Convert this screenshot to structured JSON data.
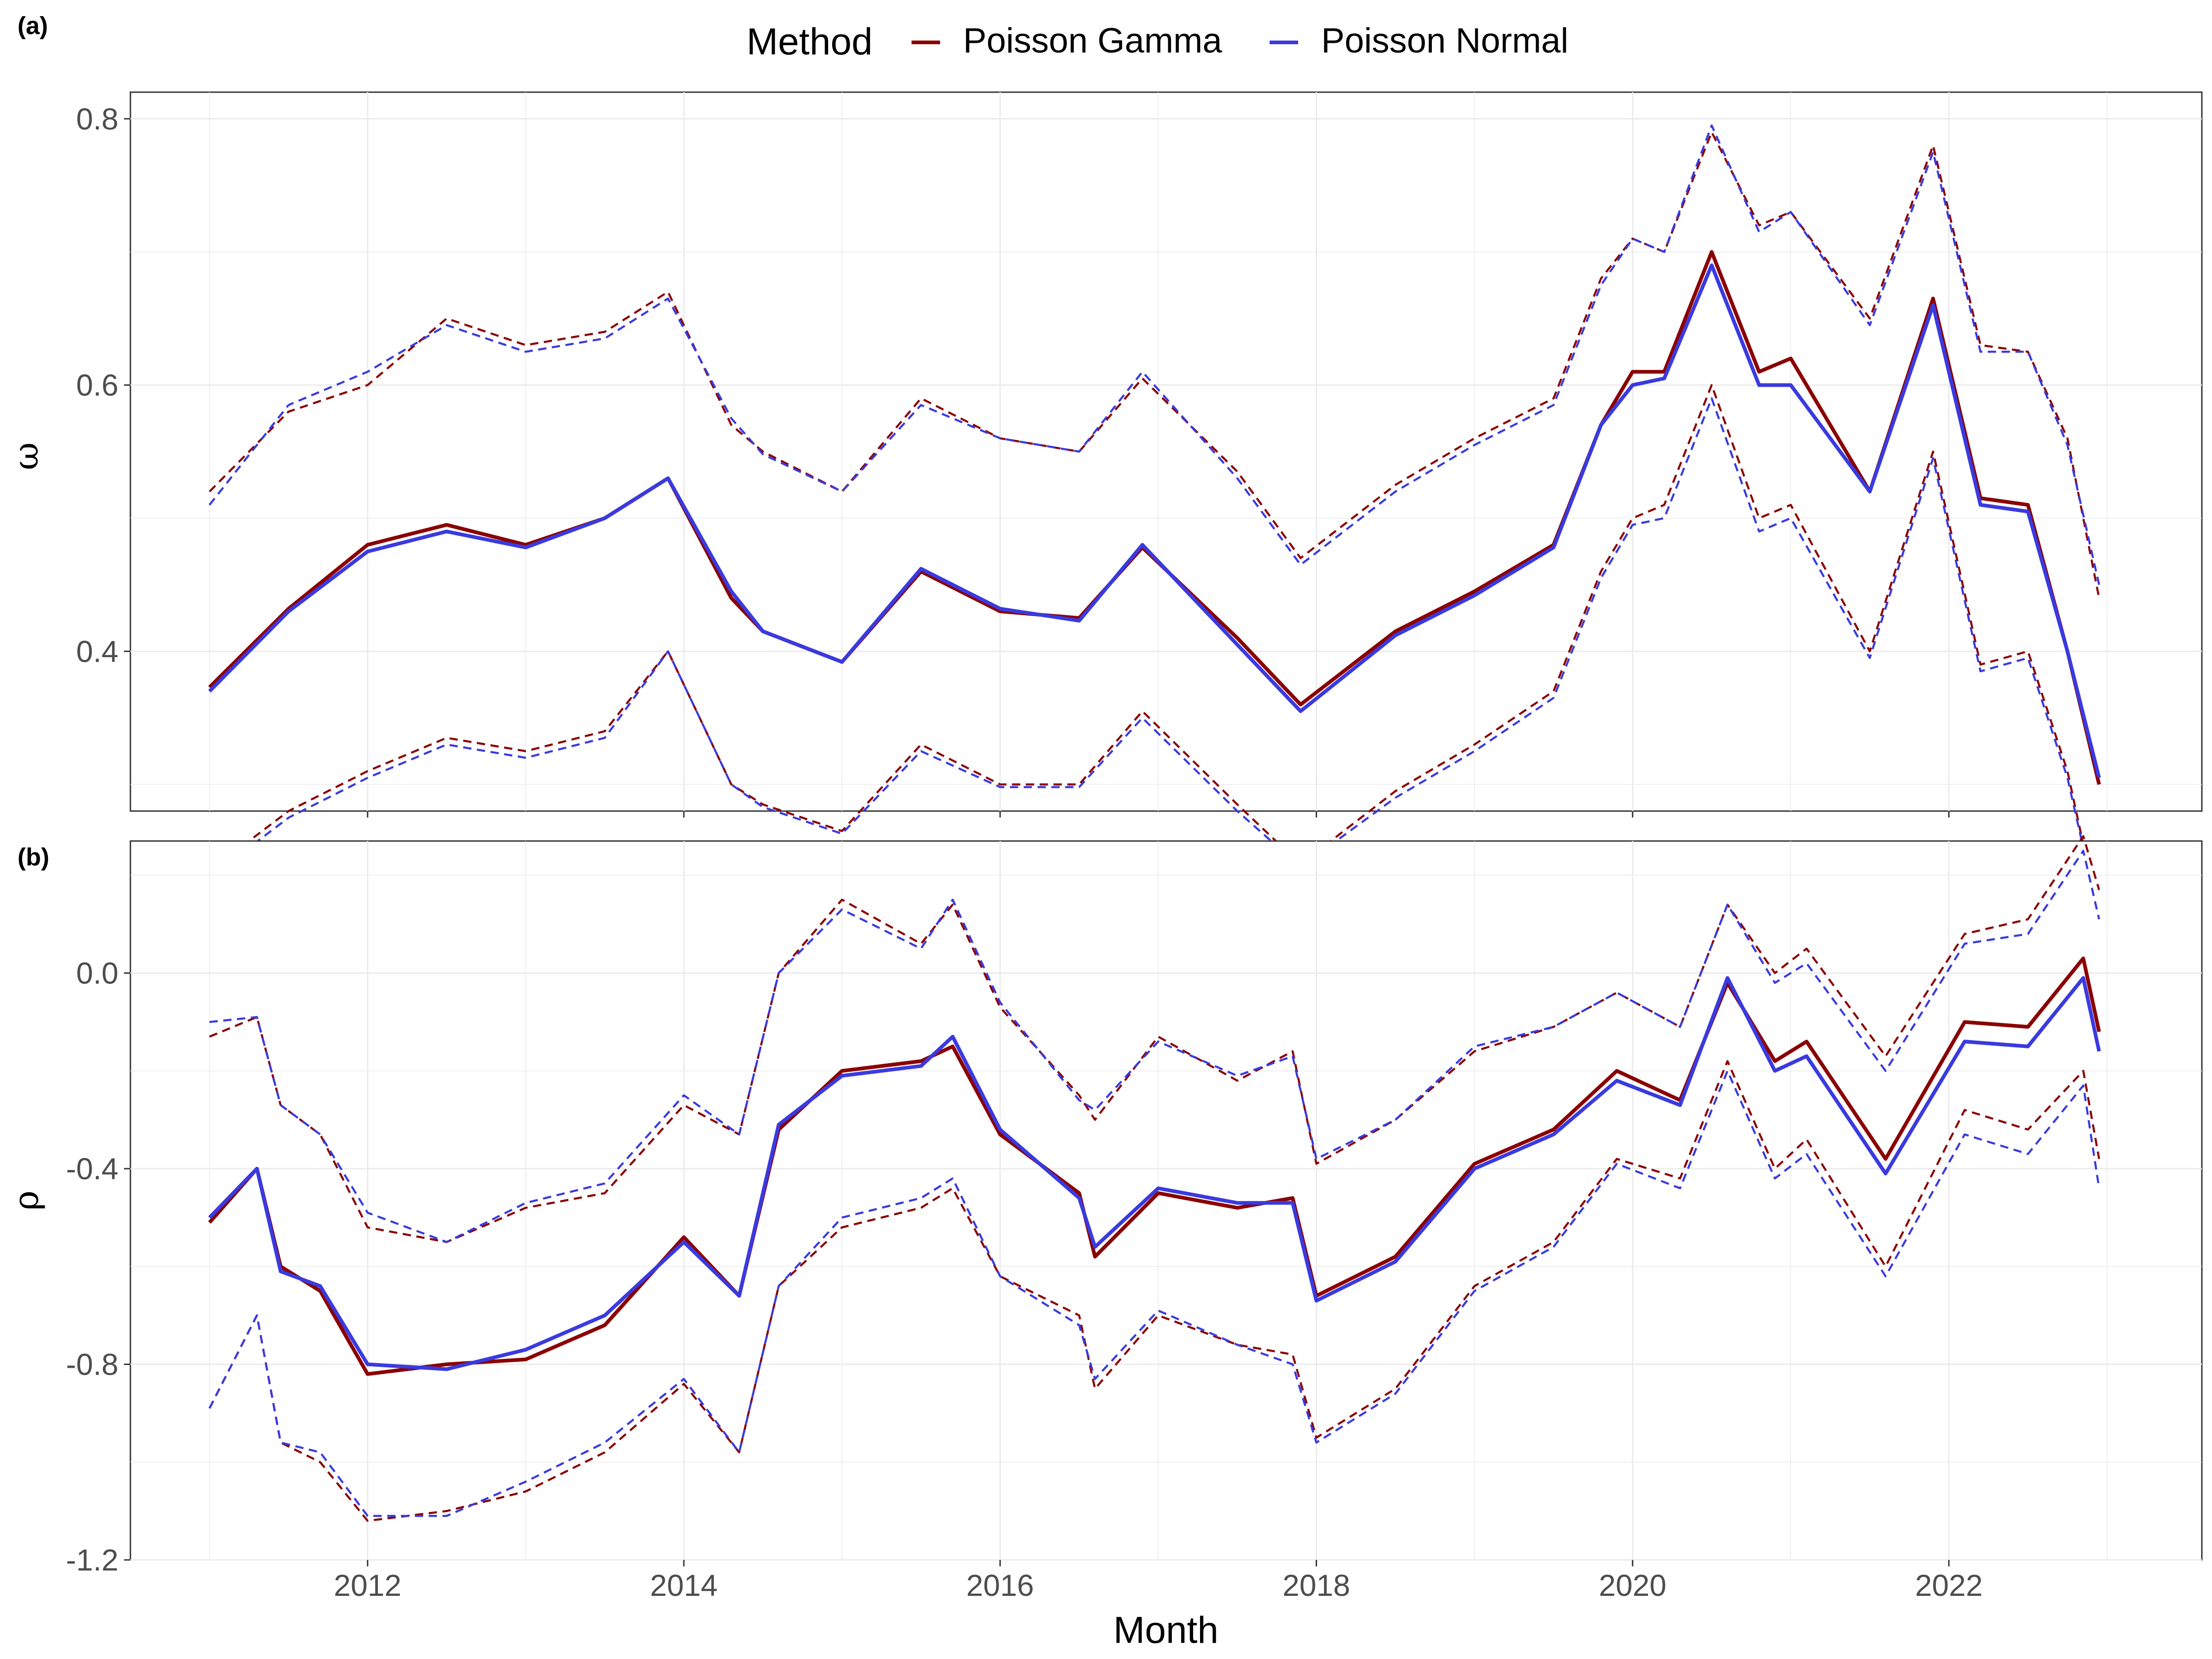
{
  "legend": {
    "title": "Method",
    "placement": "top",
    "entries": [
      {
        "name": "Poisson Gamma",
        "color": "#8b0000"
      },
      {
        "name": "Poisson Normal",
        "color": "#3a3ae0"
      }
    ]
  },
  "chart_data": [
    {
      "panel": "(a)",
      "type": "line",
      "xlabel": "",
      "ylabel": "ω",
      "x_range": [
        2010.5,
        2023.6
      ],
      "ylim": [
        0.28,
        0.82
      ],
      "y_ticks": [
        "0.4",
        "0.6",
        "0.8"
      ],
      "y_tick_values": [
        0.4,
        0.6,
        0.8
      ],
      "grid": true,
      "x": [
        2011.0,
        2011.5,
        2012.0,
        2012.5,
        2013.0,
        2013.5,
        2013.9,
        2014.3,
        2014.5,
        2015.0,
        2015.5,
        2016.0,
        2016.5,
        2016.9,
        2017.5,
        2017.9,
        2018.5,
        2019.0,
        2019.5,
        2019.8,
        2020.0,
        2020.2,
        2020.5,
        2020.8,
        2021.0,
        2021.5,
        2021.9,
        2022.2,
        2022.5,
        2022.75,
        2022.95
      ],
      "series": [
        {
          "name": "Poisson Gamma",
          "style": "solid",
          "color": "#8b0000",
          "values": [
            0.373,
            0.432,
            0.48,
            0.495,
            0.48,
            0.5,
            0.53,
            0.44,
            0.415,
            0.392,
            0.46,
            0.43,
            0.425,
            0.478,
            0.41,
            0.36,
            0.415,
            0.445,
            0.48,
            0.57,
            0.61,
            0.61,
            0.7,
            0.61,
            0.62,
            0.52,
            0.665,
            0.515,
            0.51,
            0.4,
            0.3
          ]
        },
        {
          "name": "Poisson Normal",
          "style": "solid",
          "color": "#3a3ae0",
          "values": [
            0.37,
            0.43,
            0.475,
            0.49,
            0.478,
            0.5,
            0.53,
            0.445,
            0.415,
            0.392,
            0.462,
            0.432,
            0.423,
            0.48,
            0.405,
            0.355,
            0.412,
            0.442,
            0.478,
            0.57,
            0.6,
            0.605,
            0.69,
            0.6,
            0.6,
            0.52,
            0.66,
            0.51,
            0.505,
            0.4,
            0.305
          ]
        },
        {
          "name": "Poisson Gamma",
          "style": "dashed",
          "color": "#8b0000",
          "values": [
            0.52,
            0.58,
            0.6,
            0.65,
            0.63,
            0.64,
            0.67,
            0.57,
            0.55,
            0.52,
            0.59,
            0.56,
            0.55,
            0.605,
            0.535,
            0.47,
            0.525,
            0.56,
            0.59,
            0.68,
            0.71,
            0.7,
            0.79,
            0.72,
            0.73,
            0.65,
            0.78,
            0.63,
            0.625,
            0.56,
            0.44
          ]
        },
        {
          "name": "Poisson Normal",
          "style": "dashed",
          "color": "#3a3ae0",
          "values": [
            0.51,
            0.585,
            0.61,
            0.645,
            0.625,
            0.635,
            0.665,
            0.575,
            0.548,
            0.52,
            0.585,
            0.56,
            0.55,
            0.61,
            0.53,
            0.465,
            0.52,
            0.555,
            0.585,
            0.675,
            0.71,
            0.7,
            0.795,
            0.715,
            0.73,
            0.645,
            0.775,
            0.625,
            0.625,
            0.555,
            0.45
          ]
        },
        {
          "name": "Poisson Gamma",
          "style": "dashed",
          "color": "#8b0000",
          "values": [
            0.235,
            0.28,
            0.31,
            0.335,
            0.325,
            0.34,
            0.4,
            0.3,
            0.285,
            0.265,
            0.33,
            0.3,
            0.3,
            0.355,
            0.285,
            0.24,
            0.295,
            0.33,
            0.37,
            0.46,
            0.5,
            0.51,
            0.6,
            0.5,
            0.51,
            0.4,
            0.55,
            0.39,
            0.4,
            0.31,
            0.2
          ]
        },
        {
          "name": "Poisson Normal",
          "style": "dashed",
          "color": "#3a3ae0",
          "values": [
            0.23,
            0.275,
            0.305,
            0.33,
            0.32,
            0.335,
            0.4,
            0.3,
            0.283,
            0.263,
            0.325,
            0.298,
            0.298,
            0.35,
            0.28,
            0.238,
            0.29,
            0.325,
            0.365,
            0.455,
            0.495,
            0.5,
            0.59,
            0.49,
            0.5,
            0.395,
            0.545,
            0.385,
            0.395,
            0.305,
            0.2
          ]
        }
      ]
    },
    {
      "panel": "(b)",
      "type": "line",
      "xlabel": "Month",
      "ylabel": "ρ",
      "x_range": [
        2010.5,
        2023.6
      ],
      "ylim": [
        -1.2,
        0.27
      ],
      "y_ticks": [
        "-1.2",
        "-0.8",
        "-0.4",
        "0.0"
      ],
      "y_tick_values": [
        -1.2,
        -0.8,
        -0.4,
        0.0
      ],
      "x_ticks": [
        "2012",
        "2014",
        "2016",
        "2018",
        "2020",
        "2022"
      ],
      "x_tick_values": [
        2012,
        2014,
        2016,
        2018,
        2020,
        2022
      ],
      "grid": true,
      "x": [
        2011.0,
        2011.3,
        2011.45,
        2011.7,
        2012.0,
        2012.5,
        2013.0,
        2013.5,
        2014.0,
        2014.35,
        2014.6,
        2015.0,
        2015.5,
        2015.7,
        2016.0,
        2016.5,
        2016.6,
        2017.0,
        2017.5,
        2017.85,
        2018.0,
        2018.5,
        2019.0,
        2019.5,
        2019.9,
        2020.3,
        2020.6,
        2020.9,
        2021.1,
        2021.6,
        2022.1,
        2022.5,
        2022.85,
        2022.95
      ],
      "series": [
        {
          "name": "Poisson Gamma",
          "style": "solid",
          "color": "#8b0000",
          "values": [
            -0.51,
            -0.4,
            -0.6,
            -0.65,
            -0.82,
            -0.8,
            -0.79,
            -0.72,
            -0.54,
            -0.66,
            -0.32,
            -0.2,
            -0.18,
            -0.15,
            -0.33,
            -0.45,
            -0.58,
            -0.45,
            -0.48,
            -0.46,
            -0.66,
            -0.58,
            -0.39,
            -0.32,
            -0.2,
            -0.26,
            -0.02,
            -0.18,
            -0.14,
            -0.38,
            -0.1,
            -0.11,
            0.03,
            -0.12
          ]
        },
        {
          "name": "Poisson Normal",
          "style": "solid",
          "color": "#3a3ae0",
          "values": [
            -0.5,
            -0.4,
            -0.61,
            -0.64,
            -0.8,
            -0.81,
            -0.77,
            -0.7,
            -0.55,
            -0.66,
            -0.31,
            -0.21,
            -0.19,
            -0.13,
            -0.32,
            -0.46,
            -0.56,
            -0.44,
            -0.47,
            -0.47,
            -0.67,
            -0.59,
            -0.4,
            -0.33,
            -0.22,
            -0.27,
            -0.01,
            -0.2,
            -0.17,
            -0.41,
            -0.14,
            -0.15,
            -0.01,
            -0.16
          ]
        },
        {
          "name": "Poisson Gamma",
          "style": "dashed",
          "color": "#8b0000",
          "values": [
            -0.13,
            -0.09,
            -0.27,
            -0.33,
            -0.52,
            -0.55,
            -0.48,
            -0.45,
            -0.27,
            -0.33,
            0.0,
            0.15,
            0.06,
            0.14,
            -0.07,
            -0.25,
            -0.3,
            -0.13,
            -0.22,
            -0.16,
            -0.39,
            -0.3,
            -0.16,
            -0.11,
            -0.04,
            -0.11,
            0.14,
            0.0,
            0.05,
            -0.17,
            0.08,
            0.11,
            0.28,
            0.17
          ]
        },
        {
          "name": "Poisson Normal",
          "style": "dashed",
          "color": "#3a3ae0",
          "values": [
            -0.1,
            -0.09,
            -0.27,
            -0.33,
            -0.49,
            -0.55,
            -0.47,
            -0.43,
            -0.25,
            -0.33,
            0.0,
            0.13,
            0.05,
            0.15,
            -0.06,
            -0.26,
            -0.28,
            -0.14,
            -0.21,
            -0.17,
            -0.38,
            -0.3,
            -0.15,
            -0.11,
            -0.04,
            -0.11,
            0.14,
            -0.02,
            0.02,
            -0.2,
            0.06,
            0.08,
            0.25,
            0.11
          ]
        },
        {
          "name": "Poisson Gamma",
          "style": "dashed",
          "color": "#8b0000",
          "values": [
            -0.89,
            -0.7,
            -0.96,
            -1.0,
            -1.12,
            -1.1,
            -1.06,
            -0.98,
            -0.84,
            -0.98,
            -0.64,
            -0.52,
            -0.48,
            -0.44,
            -0.62,
            -0.7,
            -0.85,
            -0.7,
            -0.76,
            -0.78,
            -0.95,
            -0.85,
            -0.64,
            -0.55,
            -0.38,
            -0.42,
            -0.18,
            -0.4,
            -0.34,
            -0.6,
            -0.28,
            -0.32,
            -0.2,
            -0.38
          ]
        },
        {
          "name": "Poisson Normal",
          "style": "dashed",
          "color": "#3a3ae0",
          "values": [
            -0.89,
            -0.7,
            -0.96,
            -0.98,
            -1.11,
            -1.11,
            -1.04,
            -0.96,
            -0.83,
            -0.98,
            -0.64,
            -0.5,
            -0.46,
            -0.42,
            -0.62,
            -0.72,
            -0.83,
            -0.69,
            -0.76,
            -0.8,
            -0.96,
            -0.86,
            -0.65,
            -0.56,
            -0.39,
            -0.44,
            -0.2,
            -0.42,
            -0.37,
            -0.62,
            -0.33,
            -0.37,
            -0.23,
            -0.44
          ]
        }
      ]
    }
  ]
}
